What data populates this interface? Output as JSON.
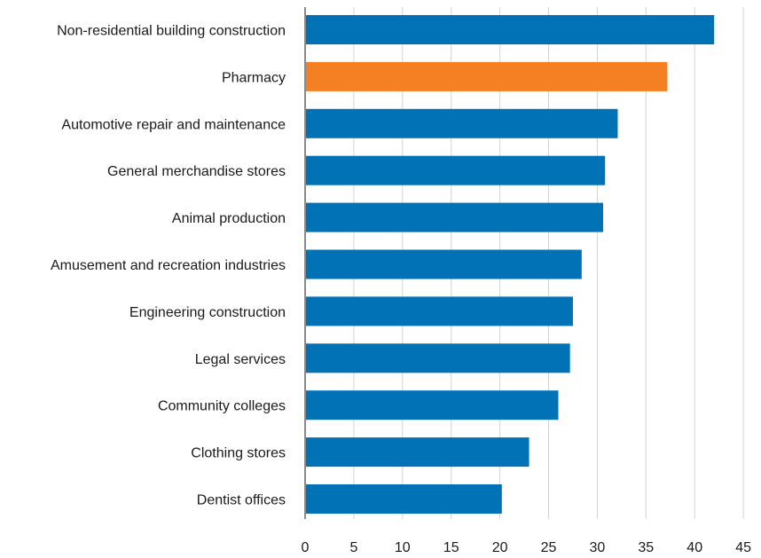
{
  "chart_data": {
    "type": "bar",
    "orientation": "horizontal",
    "categories": [
      "Non-residential building construction",
      "Pharmacy",
      "Automotive repair and maintenance",
      "General merchandise stores",
      "Animal production",
      "Amusement and recreation industries",
      "Engineering construction",
      "Legal services",
      "Community colleges",
      "Clothing stores",
      "Dentist offices"
    ],
    "values": [
      42,
      37.2,
      32.1,
      30.8,
      30.6,
      28.4,
      27.5,
      27.2,
      26.0,
      23.0,
      20.2
    ],
    "colors": [
      "#0072b5",
      "#f58024",
      "#0072b5",
      "#0072b5",
      "#0072b5",
      "#0072b5",
      "#0072b5",
      "#0072b5",
      "#0072b5",
      "#0072b5",
      "#0072b5"
    ],
    "xticks": [
      "0",
      "5",
      "10",
      "15",
      "20",
      "25",
      "30",
      "35",
      "40",
      "45"
    ],
    "xlim": [
      0,
      45
    ],
    "grid": true,
    "title": "",
    "xlabel": "",
    "ylabel": ""
  }
}
